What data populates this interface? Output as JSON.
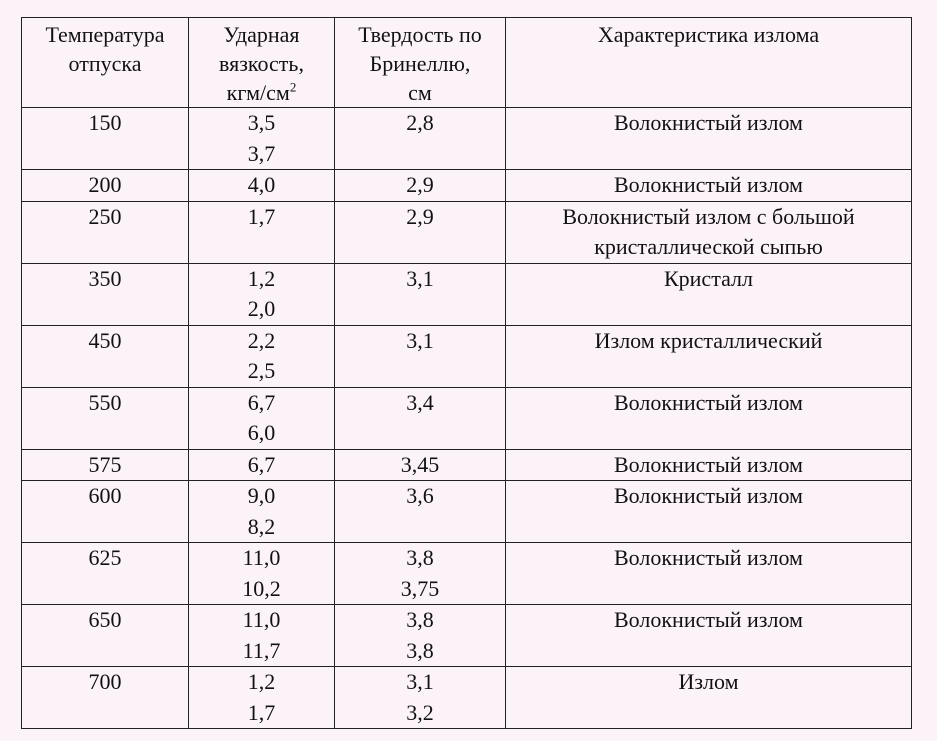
{
  "headers": {
    "temp": [
      "Температура",
      "отпуска"
    ],
    "impact": [
      "Ударная",
      "вязкость,",
      "кгм/см",
      "2"
    ],
    "hardness": [
      "Твердость по",
      "Бринеллю,",
      "см"
    ],
    "fracture": "Характеристика излома"
  },
  "rows": [
    {
      "temp": "150",
      "impact": [
        "3,5",
        "3,7"
      ],
      "hardness": [
        "2,8"
      ],
      "fracture": [
        "Волокнистый излом"
      ]
    },
    {
      "temp": "200",
      "impact": [
        "4,0"
      ],
      "hardness": [
        "2,9"
      ],
      "fracture": [
        "Волокнистый излом"
      ]
    },
    {
      "temp": "250",
      "impact": [
        "1,7"
      ],
      "hardness": [
        "2,9"
      ],
      "fracture": [
        "Волокнистый излом с большой",
        "кристаллической сыпью"
      ]
    },
    {
      "temp": "350",
      "impact": [
        "1,2",
        "2,0"
      ],
      "hardness": [
        "3,1"
      ],
      "fracture": [
        "Кристалл"
      ]
    },
    {
      "temp": "450",
      "impact": [
        "2,2",
        "2,5"
      ],
      "hardness": [
        "3,1"
      ],
      "fracture": [
        "Излом кристаллический"
      ]
    },
    {
      "temp": "550",
      "impact": [
        "6,7",
        "6,0"
      ],
      "hardness": [
        "3,4"
      ],
      "fracture": [
        "Волокнистый излом"
      ]
    },
    {
      "temp": "575",
      "impact": [
        "6,7"
      ],
      "hardness": [
        "3,45"
      ],
      "fracture": [
        "Волокнистый излом"
      ]
    },
    {
      "temp": "600",
      "impact": [
        "9,0",
        "8,2"
      ],
      "hardness": [
        "3,6"
      ],
      "fracture": [
        "Волокнистый излом"
      ]
    },
    {
      "temp": "625",
      "impact": [
        "11,0",
        "10,2"
      ],
      "hardness": [
        "3,8",
        "3,75"
      ],
      "fracture": [
        "Волокнистый излом"
      ]
    },
    {
      "temp": "650",
      "impact": [
        "11,0",
        "11,7"
      ],
      "hardness": [
        "3,8",
        "3,8"
      ],
      "fracture": [
        "Волокнистый излом"
      ]
    },
    {
      "temp": "700",
      "impact": [
        "1,2",
        "1,7"
      ],
      "hardness": [
        "3,1",
        "3,2"
      ],
      "fracture": [
        "Излом"
      ]
    }
  ]
}
